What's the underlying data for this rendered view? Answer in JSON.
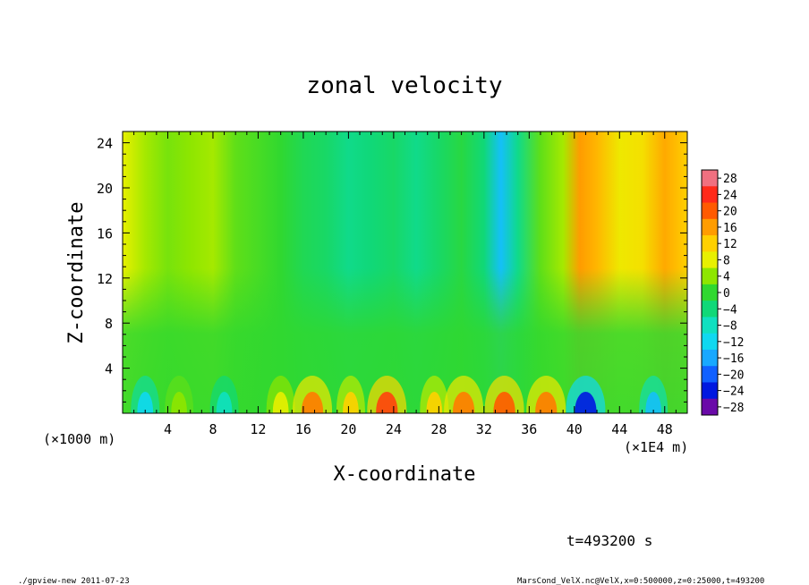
{
  "chart_data": {
    "type": "heatmap",
    "title": "zonal velocity",
    "xlabel": "X-coordinate",
    "ylabel": "Z-coordinate",
    "x_unit_label": "(×1E4 m)",
    "y_unit_label": "(×1000 m)",
    "xlim": [
      0,
      50
    ],
    "ylim": [
      0,
      25
    ],
    "x_ticks": [
      "4",
      "8",
      "12",
      "16",
      "20",
      "24",
      "28",
      "32",
      "36",
      "40",
      "44",
      "48"
    ],
    "y_ticks": [
      "4",
      "8",
      "12",
      "16",
      "20",
      "24"
    ],
    "colorbar": {
      "levels": [
        {
          "value": 28,
          "color": "#f07080"
        },
        {
          "value": 24,
          "color": "#ff2a1a"
        },
        {
          "value": 20,
          "color": "#ff5a00"
        },
        {
          "value": 16,
          "color": "#ff9c00"
        },
        {
          "value": 12,
          "color": "#ffd000"
        },
        {
          "value": 8,
          "color": "#e8f000"
        },
        {
          "value": 4,
          "color": "#8ee600"
        },
        {
          "value": 0,
          "color": "#30d830"
        },
        {
          "value": -4,
          "color": "#10d878"
        },
        {
          "value": -8,
          "color": "#10e0c0"
        },
        {
          "value": -12,
          "color": "#10d8f0"
        },
        {
          "value": -16,
          "color": "#18a8ff"
        },
        {
          "value": -20,
          "color": "#1060ff"
        },
        {
          "value": -24,
          "color": "#0018e0"
        },
        {
          "value": -28,
          "color": "#6a0aa8"
        }
      ],
      "labels": [
        "28",
        "24",
        "20",
        "16",
        "12",
        "8",
        "4",
        "0",
        "−4",
        "−8",
        "−12",
        "−16",
        "−20",
        "−24",
        "−28"
      ]
    },
    "column_profile": {
      "x": [
        0,
        2,
        4,
        6,
        8,
        10,
        12,
        14,
        16,
        18,
        20,
        22,
        24,
        26,
        28,
        30,
        32,
        33.5,
        35,
        37,
        39,
        40.5,
        42,
        44,
        46,
        48,
        50
      ],
      "upper_velocity": [
        8,
        5,
        3,
        4,
        5,
        2,
        1,
        0,
        -2,
        -3,
        -5,
        -4,
        -3,
        -5,
        -3,
        -1,
        -4,
        -14,
        -5,
        2,
        5,
        16,
        14,
        9,
        10,
        15,
        12
      ]
    },
    "near_surface_peaks": {
      "x": [
        2,
        5,
        9,
        14,
        16.8,
        20.2,
        23.4,
        27.6,
        30.2,
        33.8,
        37.5,
        41,
        47
      ],
      "velocity": [
        -12,
        4,
        -8,
        8,
        18,
        12,
        22,
        12,
        18,
        20,
        18,
        -24,
        -14
      ]
    }
  },
  "time_label": "t=493200 s",
  "footer": {
    "program": "./gpview-new   2011-07-23",
    "source": "MarsCond_VelX.nc@VelX,x=0:500000,z=0:25000,t=493200"
  }
}
